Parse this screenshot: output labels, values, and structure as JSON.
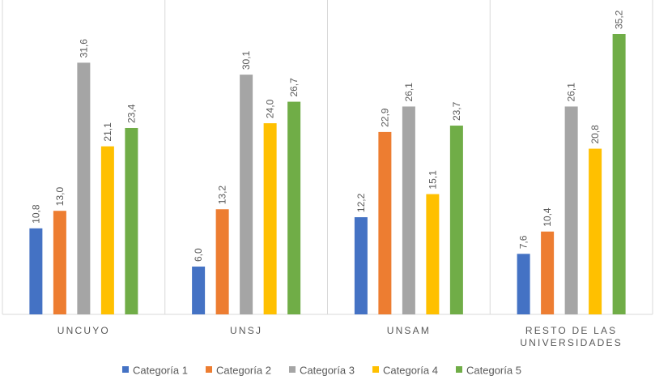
{
  "chart_data": {
    "type": "bar",
    "title": "",
    "xlabel": "",
    "ylabel": "",
    "categories": [
      "UNCUYO",
      "UNSJ",
      "UNSAM",
      "RESTO DE LAS UNIVERSIDADES"
    ],
    "category_lines": [
      [
        "UNCUYO"
      ],
      [
        "UNSJ"
      ],
      [
        "UNSAM"
      ],
      [
        "RESTO DE LAS",
        "UNIVERSIDADES"
      ]
    ],
    "series": [
      {
        "name": "Categoría 1",
        "color": "#4472C4",
        "values": [
          10.8,
          6.0,
          12.2,
          7.6
        ],
        "labels": [
          "10,8",
          "6,0",
          "12,2",
          "7,6"
        ]
      },
      {
        "name": "Categoría 2",
        "color": "#ED7D31",
        "values": [
          13.0,
          13.2,
          22.9,
          10.4
        ],
        "labels": [
          "13,0",
          "13,2",
          "22,9",
          "10,4"
        ]
      },
      {
        "name": "Categoría 3",
        "color": "#A5A5A5",
        "values": [
          31.6,
          30.1,
          26.1,
          26.1
        ],
        "labels": [
          "31,6",
          "30,1",
          "26,1",
          "26,1"
        ]
      },
      {
        "name": "Categoría 4",
        "color": "#FFC000",
        "values": [
          21.1,
          24.0,
          15.1,
          20.8
        ],
        "labels": [
          "21,1",
          "24,0",
          "15,1",
          "20,8"
        ]
      },
      {
        "name": "Categoría 5",
        "color": "#70AD47",
        "values": [
          23.4,
          26.7,
          23.7,
          35.2
        ],
        "labels": [
          "23,4",
          "26,7",
          "23,7",
          "35,2"
        ]
      }
    ],
    "ylim": [
      0,
      35.2
    ],
    "grid": false,
    "gridline_color": "#D9D9D9",
    "label_color": "#595959",
    "legend": "bottom"
  }
}
